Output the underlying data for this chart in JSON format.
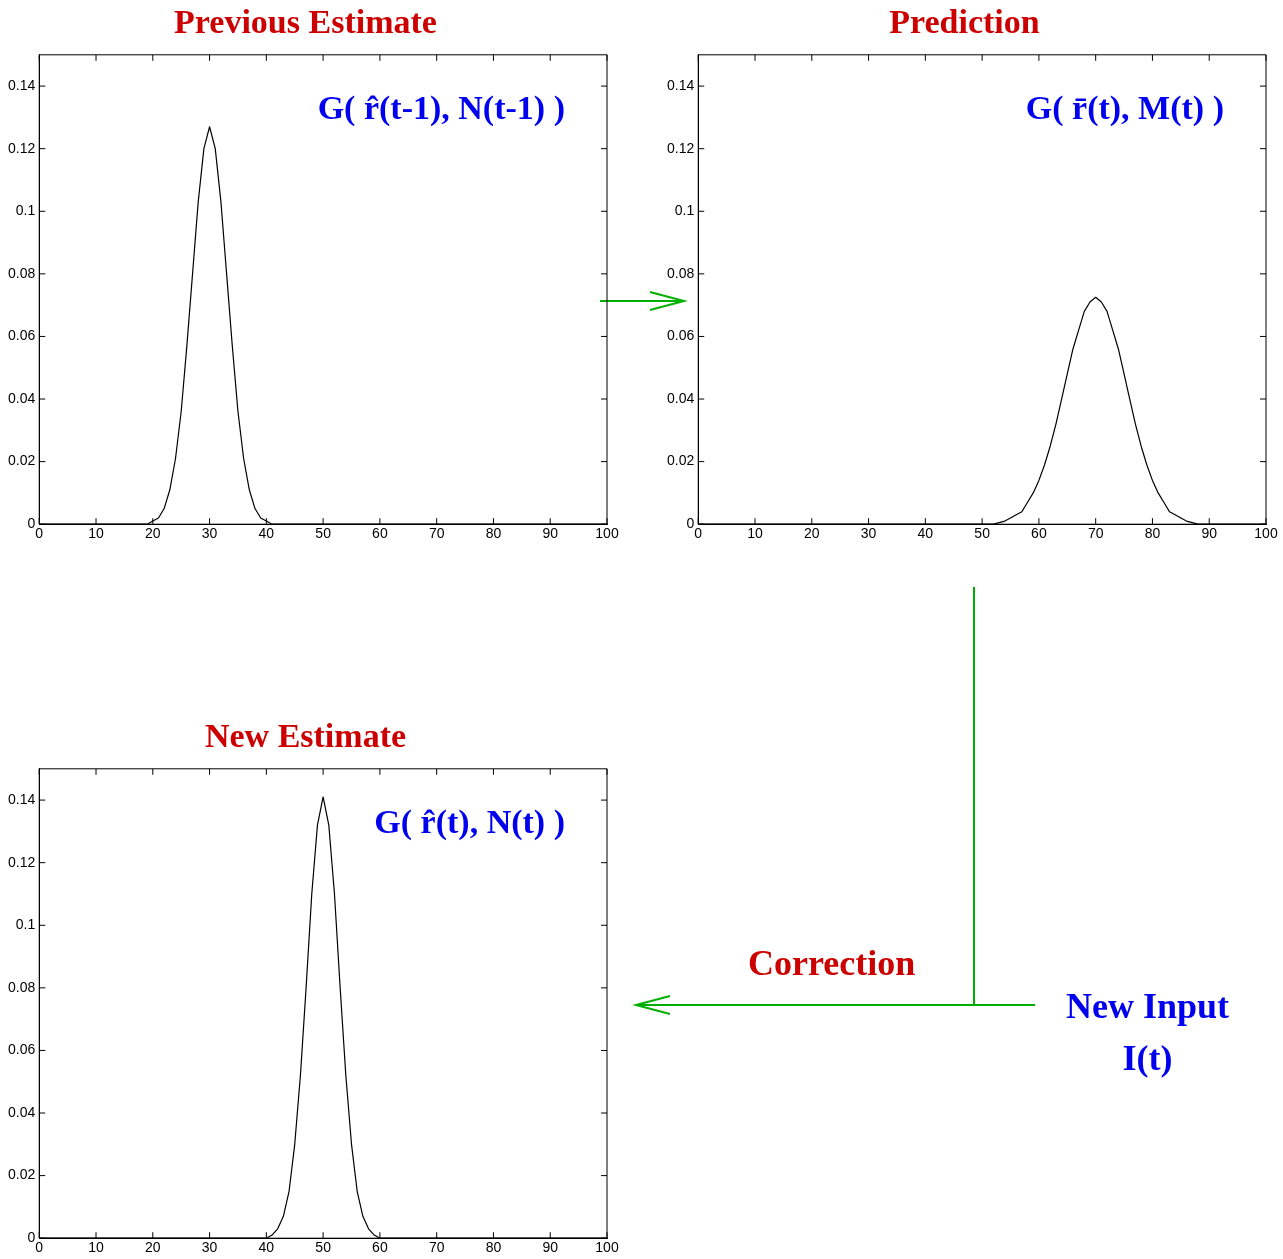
{
  "chart_data": [
    {
      "type": "line",
      "title": "Previous Estimate",
      "xlim": [
        0,
        100
      ],
      "xticks": [
        0,
        10,
        20,
        30,
        40,
        50,
        60,
        70,
        80,
        90,
        100
      ],
      "ylim": [
        0,
        0.15
      ],
      "yticks": [
        0,
        0.02,
        0.04,
        0.06,
        0.08,
        0.1,
        0.12,
        0.14
      ],
      "marker": "none",
      "annotations": [
        "G( r̂(t-1), N(t-1) )"
      ],
      "series": [
        {
          "color": "#000000",
          "x": [
            0,
            19,
            20,
            21,
            22,
            23,
            24,
            25,
            26,
            27,
            28,
            29,
            30,
            31,
            32,
            33,
            34,
            35,
            36,
            37,
            38,
            39,
            40,
            41,
            100
          ],
          "values": [
            0,
            0.0,
            0.001,
            0.002,
            0.005,
            0.011,
            0.021,
            0.036,
            0.057,
            0.08,
            0.103,
            0.12,
            0.127,
            0.12,
            0.103,
            0.08,
            0.057,
            0.036,
            0.021,
            0.011,
            0.005,
            0.002,
            0.001,
            0.0,
            0
          ]
        }
      ]
    },
    {
      "type": "line",
      "title": "Prediction",
      "xlim": [
        0,
        100
      ],
      "xticks": [
        0,
        10,
        20,
        30,
        40,
        50,
        60,
        70,
        80,
        90,
        100
      ],
      "ylim": [
        0,
        0.15
      ],
      "yticks": [
        0,
        0.02,
        0.04,
        0.06,
        0.08,
        0.1,
        0.12,
        0.14
      ],
      "marker": "none",
      "annotations": [
        "G( r̄(t), M(t) )"
      ],
      "series": [
        {
          "color": "#000000",
          "x": [
            0,
            50,
            52,
            54,
            55,
            56,
            57,
            58,
            59,
            60,
            61,
            62,
            63,
            64,
            65,
            66,
            67,
            68,
            69,
            70,
            71,
            72,
            73,
            74,
            75,
            76,
            77,
            78,
            79,
            80,
            81,
            82,
            83,
            84,
            85,
            86,
            88,
            90,
            100
          ],
          "values": [
            0,
            0,
            0.0,
            0.001,
            0.002,
            0.003,
            0.004,
            0.007,
            0.01,
            0.014,
            0.019,
            0.025,
            0.032,
            0.04,
            0.048,
            0.056,
            0.062,
            0.068,
            0.071,
            0.0725,
            0.071,
            0.068,
            0.062,
            0.056,
            0.048,
            0.04,
            0.032,
            0.025,
            0.019,
            0.014,
            0.01,
            0.007,
            0.004,
            0.003,
            0.002,
            0.001,
            0.0,
            0,
            0
          ]
        }
      ]
    },
    {
      "type": "line",
      "title": "New Estimate",
      "xlim": [
        0,
        100
      ],
      "xticks": [
        0,
        10,
        20,
        30,
        40,
        50,
        60,
        70,
        80,
        90,
        100
      ],
      "ylim": [
        0,
        0.15
      ],
      "yticks": [
        0,
        0.02,
        0.04,
        0.06,
        0.08,
        0.1,
        0.12,
        0.14
      ],
      "marker": "none",
      "annotations": [
        "G( r̂(t), N(t) )"
      ],
      "series": [
        {
          "color": "#000000",
          "x": [
            0,
            40,
            41,
            42,
            43,
            44,
            45,
            46,
            47,
            48,
            49,
            50,
            51,
            52,
            53,
            54,
            55,
            56,
            57,
            58,
            59,
            60,
            100
          ],
          "values": [
            0,
            0.0,
            0.001,
            0.003,
            0.007,
            0.015,
            0.03,
            0.052,
            0.08,
            0.11,
            0.132,
            0.141,
            0.132,
            0.11,
            0.08,
            0.052,
            0.03,
            0.015,
            0.007,
            0.003,
            0.001,
            0.0,
            0
          ]
        }
      ]
    },
    {
      "type": "other",
      "title": "Correction",
      "annotations": [
        "New Input I(t)"
      ]
    }
  ]
}
